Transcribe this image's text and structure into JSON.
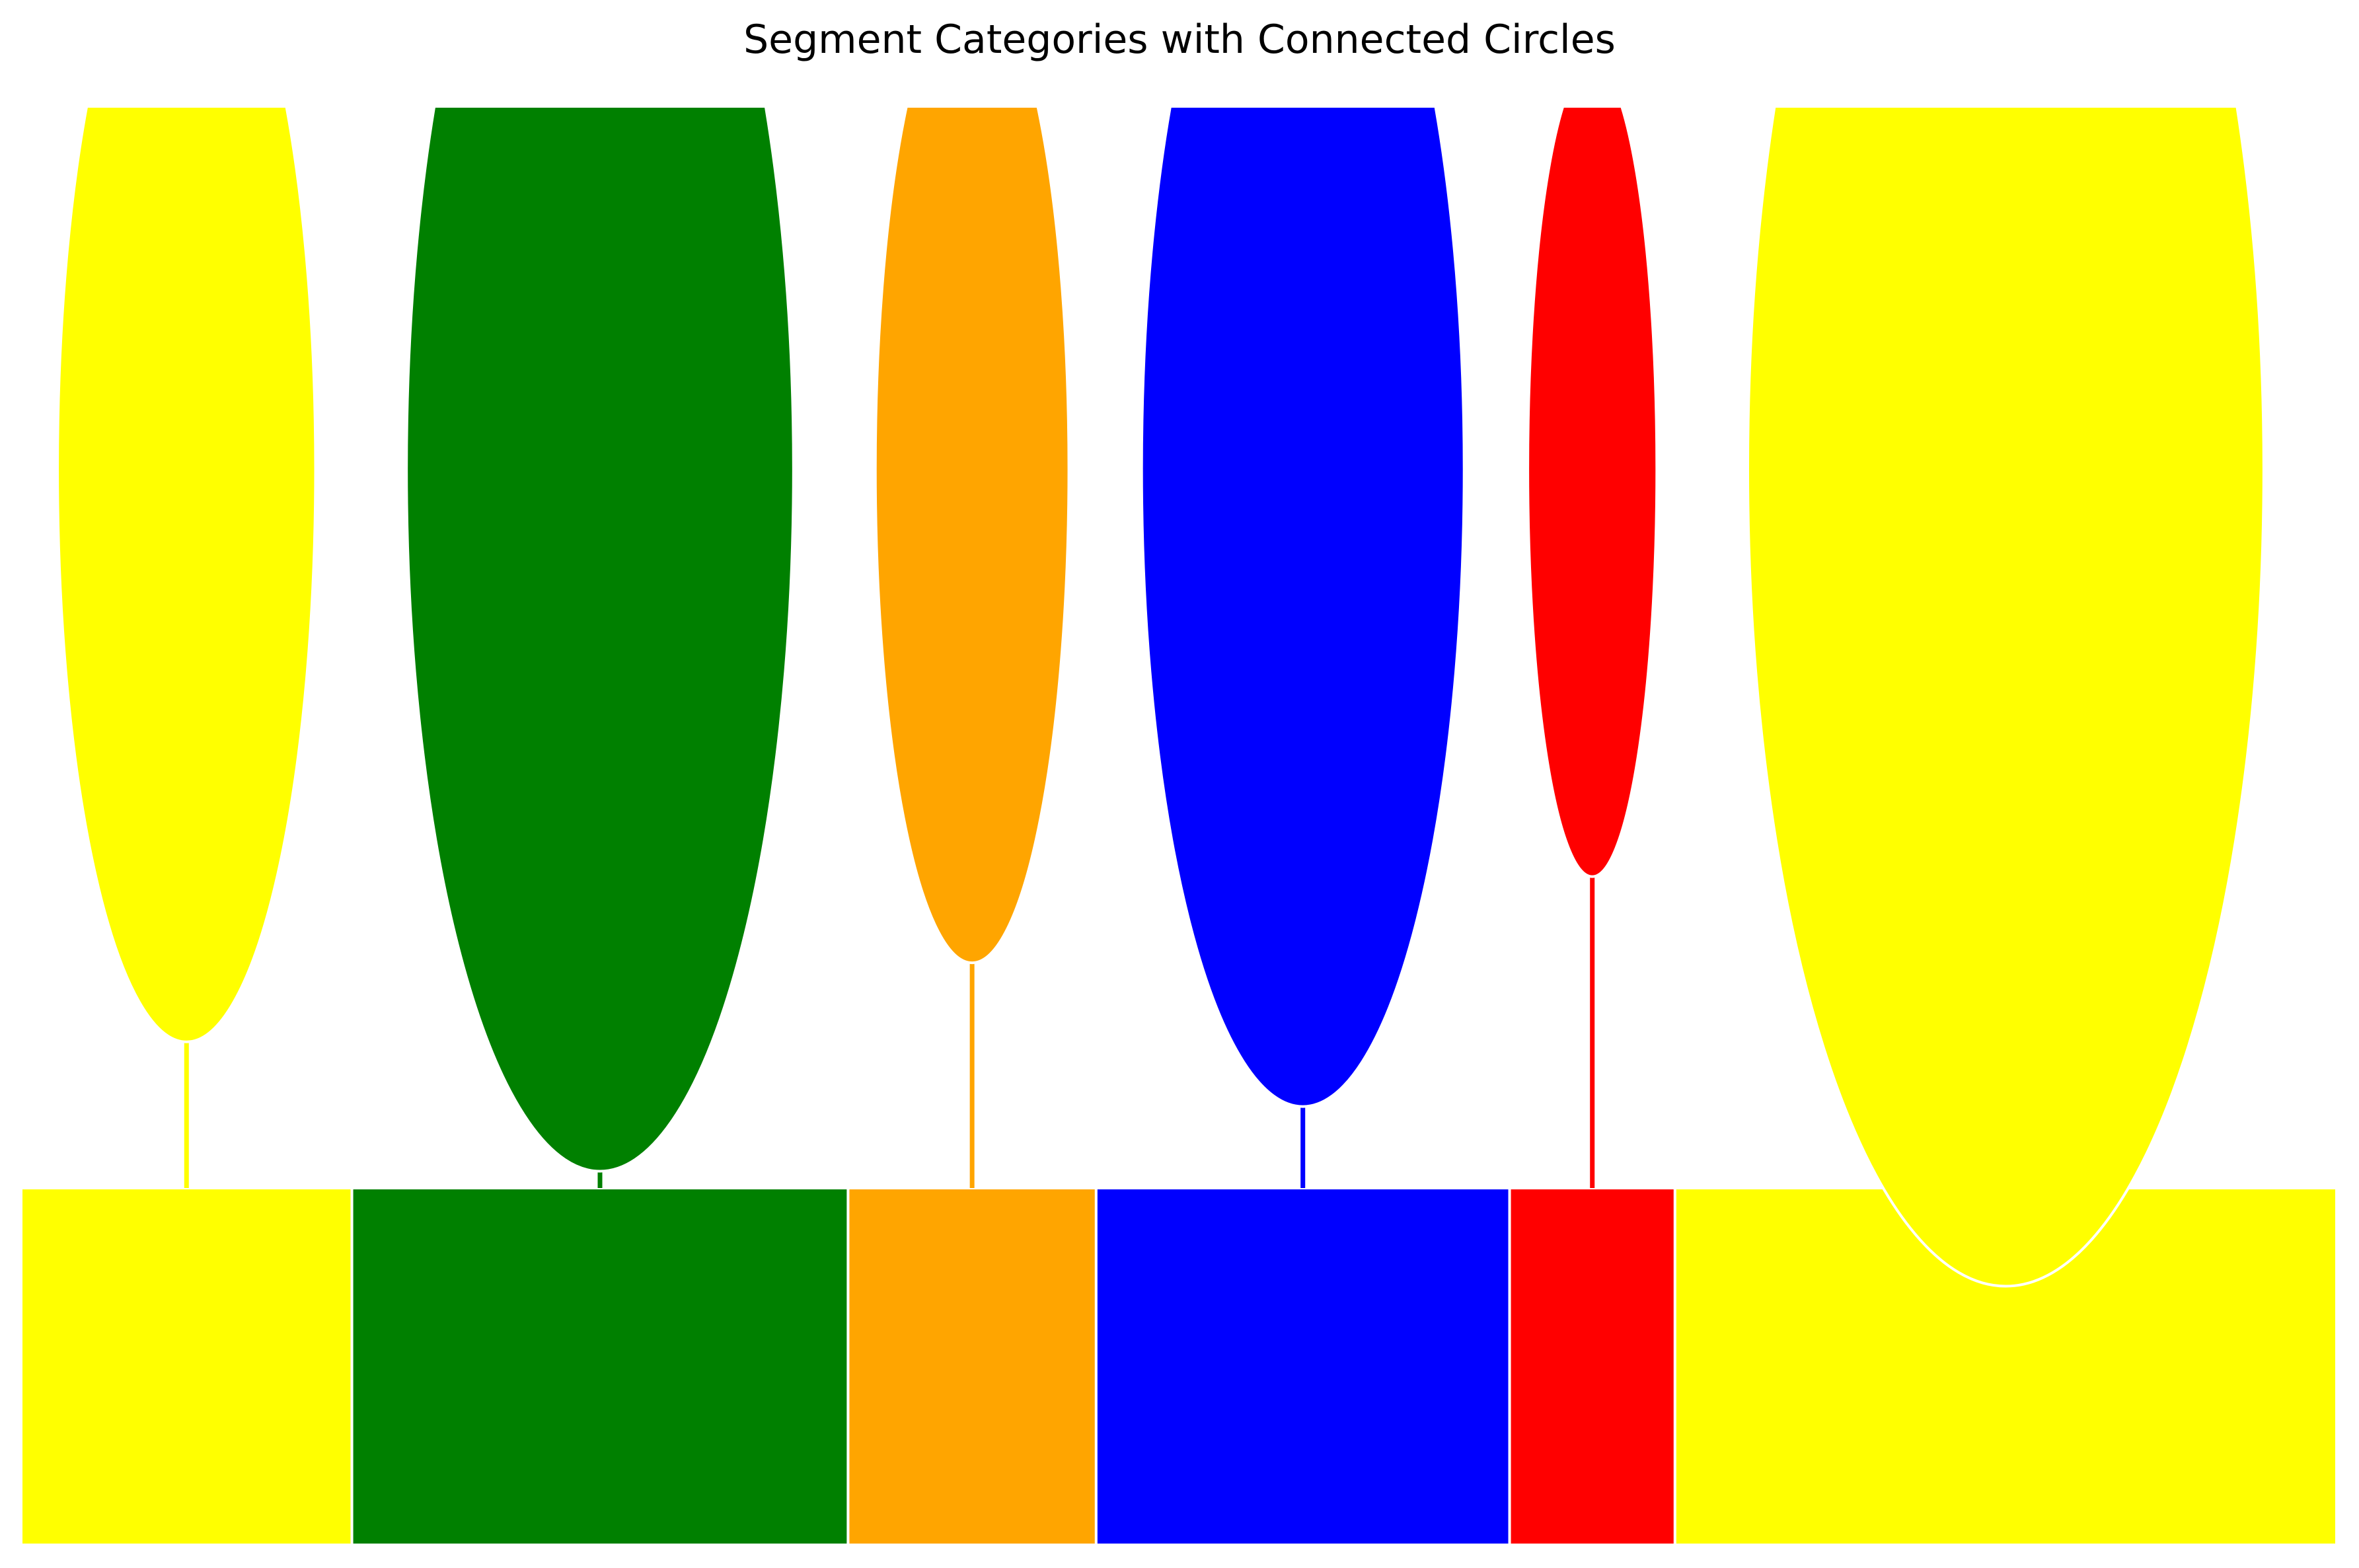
{
  "chart_data": {
    "type": "bar",
    "title": "Segment Categories with Connected Circles",
    "xlabel": "",
    "ylabel": "",
    "grid": false,
    "legend": "none",
    "segments": [
      {
        "value": 10,
        "circle_height": 0.65,
        "color": "#ffff00"
      },
      {
        "value": 15,
        "circle_height": 0.74,
        "color": "#008000"
      },
      {
        "value": 7.5,
        "circle_height": 0.595,
        "color": "#ffa500"
      },
      {
        "value": 12.5,
        "circle_height": 0.695,
        "color": "#0000ff"
      },
      {
        "value": 5,
        "circle_height": 0.535,
        "color": "#ff0000"
      },
      {
        "value": 20,
        "circle_height": 0.82,
        "color": "#ffff00"
      }
    ],
    "total": 70
  }
}
